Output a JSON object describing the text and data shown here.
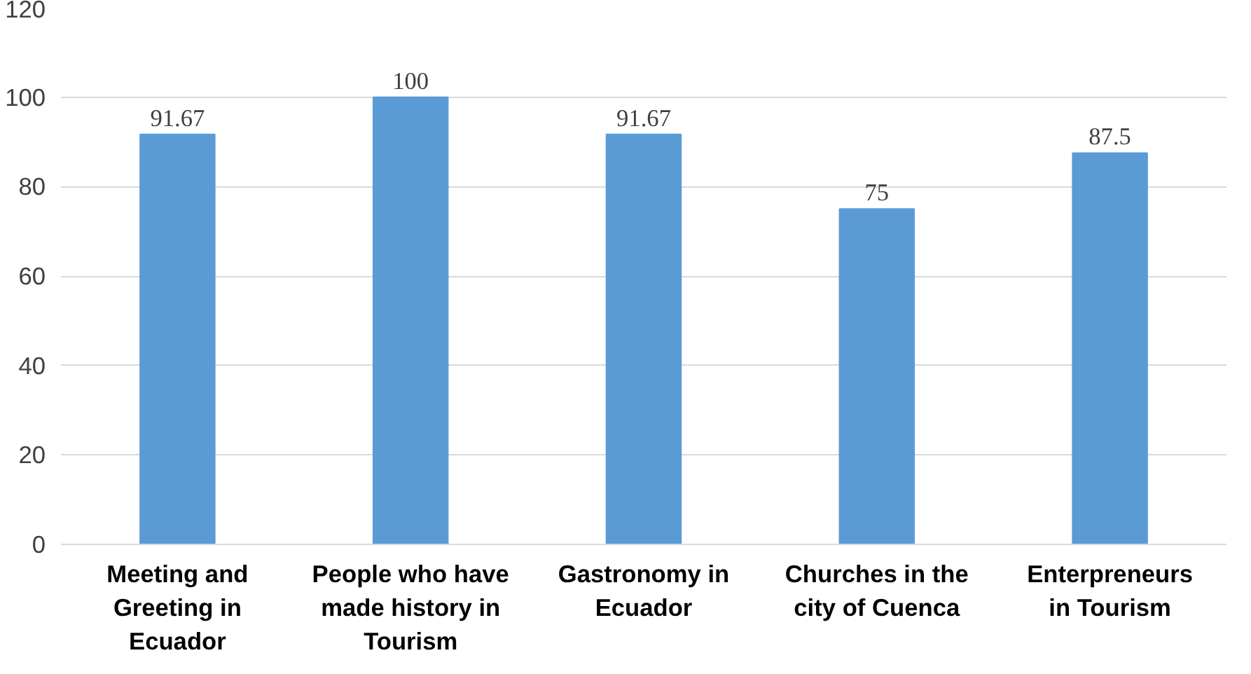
{
  "chart_data": {
    "type": "bar",
    "categories": [
      "Meeting and Greeting in Ecuador",
      "People who have made history in Tourism",
      "Gastronomy in Ecuador",
      "Churches in the city of Cuenca",
      "Enterpreneurs in Tourism"
    ],
    "values": [
      91.67,
      100,
      91.67,
      75,
      87.5
    ],
    "color": "#5b9bd5",
    "ylim": [
      0,
      120
    ],
    "yticks": [
      0,
      20,
      40,
      60,
      80,
      100,
      120
    ],
    "grid": "y",
    "data_labels": true
  }
}
